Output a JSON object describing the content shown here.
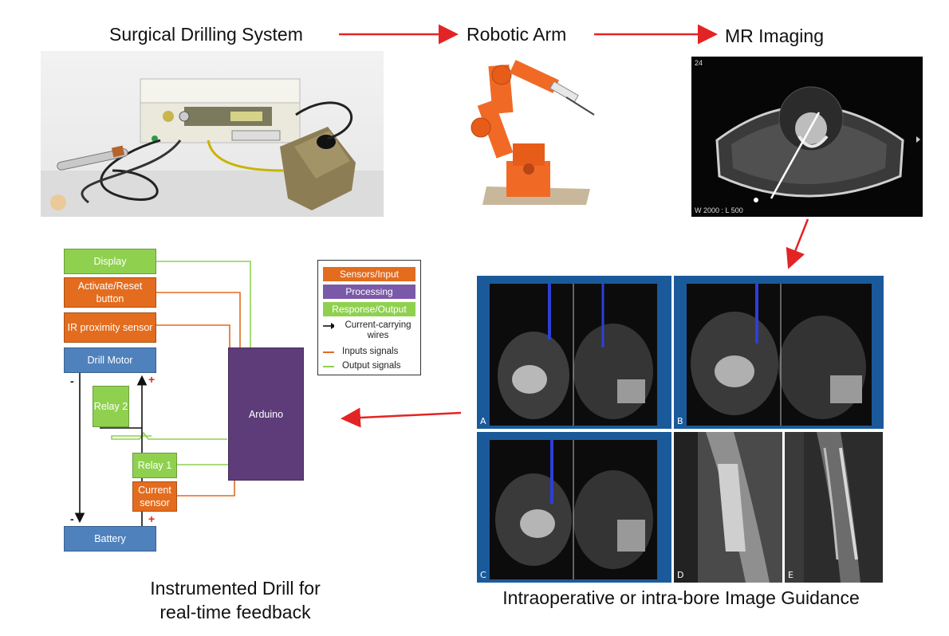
{
  "titles": {
    "drilling": "Surgical Drilling System",
    "robotic": "Robotic Arm",
    "mr": "MR Imaging"
  },
  "mr_overlay": {
    "corner": "24",
    "window": "W 2000 : L 500"
  },
  "diagram": {
    "display": "Display",
    "activate": "Activate/Reset button",
    "ir": "IR proximity sensor",
    "motor": "Drill Motor",
    "relay2": "Relay 2",
    "arduino": "Arduino",
    "relay1": "Relay 1",
    "current": "Current sensor",
    "battery": "Battery",
    "minus": "-",
    "plus": "+"
  },
  "legend": {
    "sensors": "Sensors/Input",
    "processing": "Processing",
    "response": "Response/Output",
    "wires": "Current-carrying wires",
    "inputs": "Inputs signals",
    "outputs": "Output signals"
  },
  "panels": [
    "A",
    "B",
    "C",
    "D",
    "E"
  ],
  "captions": {
    "drill_line1": "Instrumented Drill for",
    "drill_line2": "real-time feedback",
    "guidance": "Intraoperative or intra-bore Image Guidance"
  },
  "colors": {
    "arrow": "#e32424",
    "sensor": "#e36c1e",
    "processing": "#5e3c7a",
    "output": "#8fd14f",
    "motor": "#4f81bd"
  }
}
